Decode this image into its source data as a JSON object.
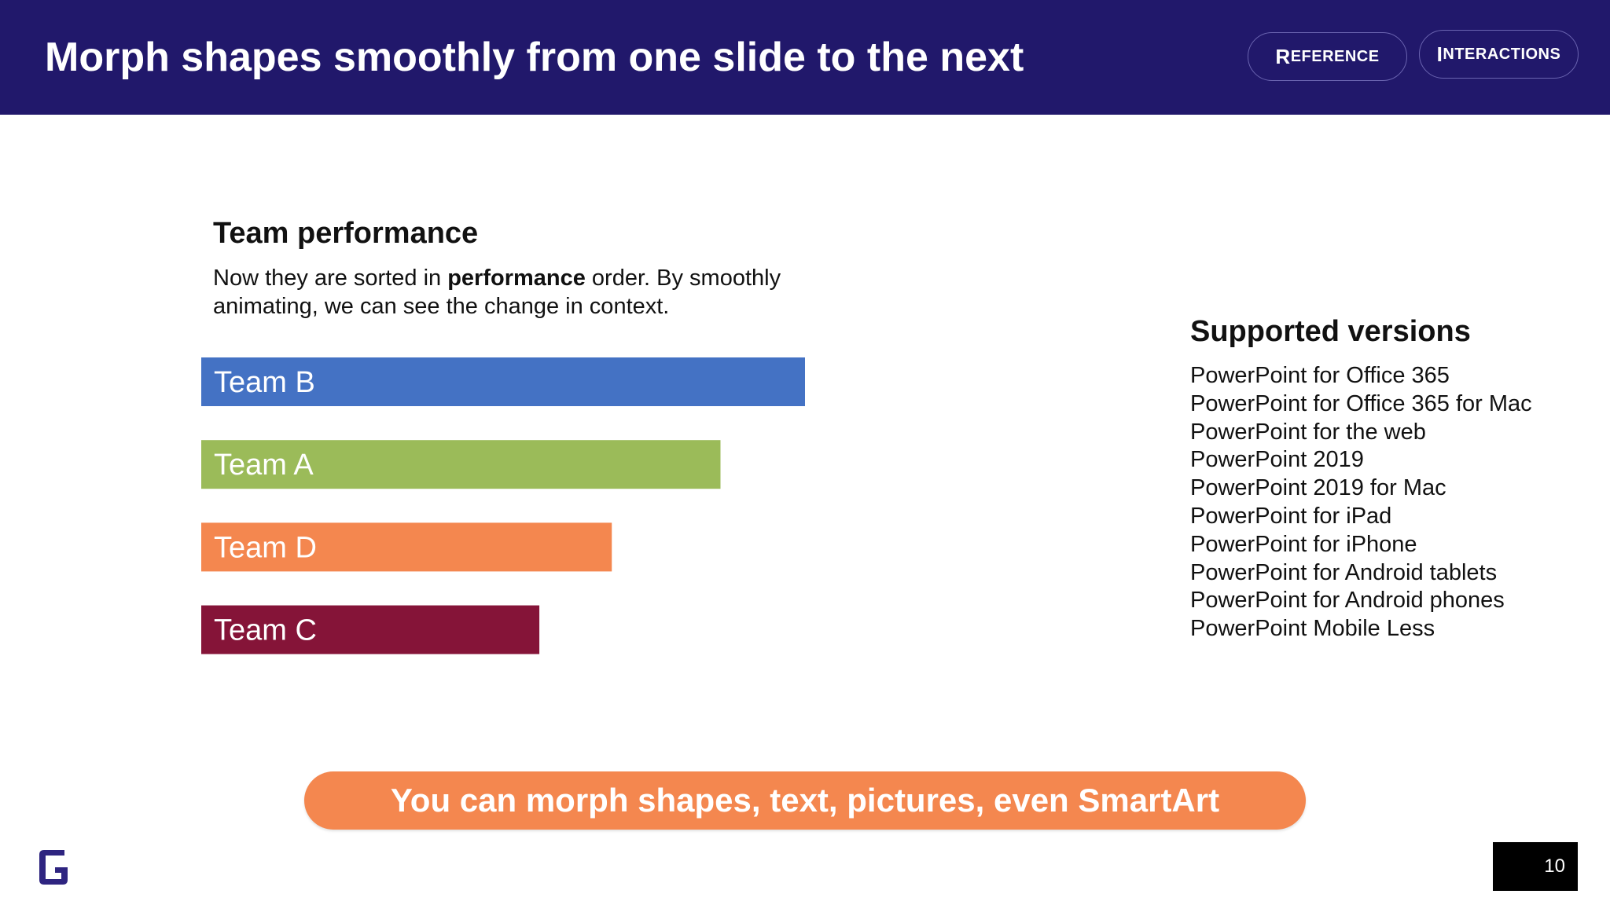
{
  "header": {
    "title": "Morph shapes smoothly from one slide to the next",
    "buttons": {
      "reference": {
        "cap": "R",
        "rest": "EFERENCE"
      },
      "interactions": {
        "cap": "I",
        "rest": "NTERACTIONS"
      }
    },
    "background_color": "#21186b"
  },
  "left_panel": {
    "title": "Team performance",
    "description_parts": {
      "before": "Now they are sorted in ",
      "bold": "performance",
      "after": " order. By smoothly animating, we can see the change in context."
    }
  },
  "chart_data": {
    "type": "bar",
    "orientation": "horizontal",
    "categories": [
      "Team B",
      "Team A",
      "Team D",
      "Team C"
    ],
    "values": [
      100,
      86,
      68,
      56
    ],
    "colors": [
      "#4472c4",
      "#9bbb59",
      "#f4874f",
      "#851438"
    ],
    "value_axis": "none",
    "gridlines": false
  },
  "right_panel": {
    "title": "Supported versions",
    "versions": [
      "PowerPoint for Office 365",
      "PowerPoint for Office 365 for Mac",
      "PowerPoint for the web",
      "PowerPoint 2019",
      "PowerPoint 2019 for Mac",
      "PowerPoint for iPad",
      "PowerPoint for iPhone",
      "PowerPoint for Android tablets",
      "PowerPoint for Android phones",
      "PowerPoint Mobile Less"
    ]
  },
  "banner": {
    "text": "You can morph shapes, text, pictures, even SmartArt",
    "color": "#f4874f"
  },
  "footer": {
    "logo_icon": "g-logo-icon",
    "page_number": "10"
  }
}
